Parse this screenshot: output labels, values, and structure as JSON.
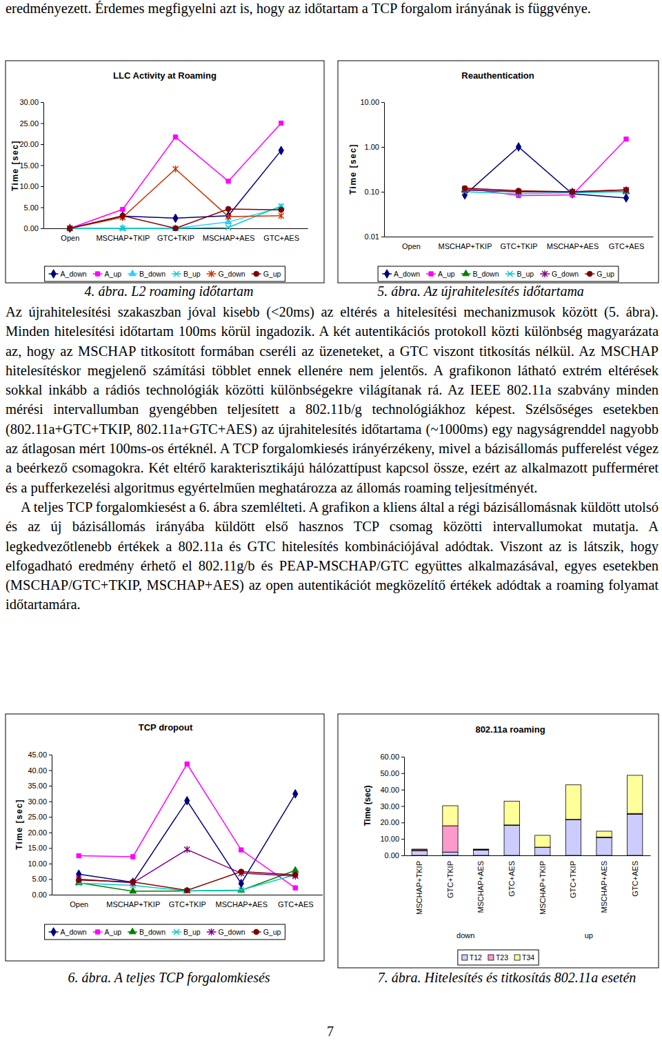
{
  "document": {
    "top_text": "eredményezett. Érdemes megfigyelni azt is, hogy az időtartam a TCP forgalom irányának is függvénye.",
    "paragraphs": [
      "Az újrahitelesítési szakaszban jóval kisebb (<20ms) az eltérés a hitelesítési mechanizmusok között (5. ábra). Minden hitelesítési időtartam 100ms körül ingadozik. A két autentikációs protokoll közti különbség magyarázata az, hogy az MSCHAP titkosított formában cseréli az üzeneteket, a GTC viszont titkosítás nélkül. Az MSCHAP hitelesítéskor megjelenő számítási többlet ennek ellenére nem jelentős. A grafikonon látható extrém eltérések sokkal inkább a rádiós technológiák közötti különbségekre világítanak rá. Az IEEE 802.11a szabvány minden mérési intervallumban gyengébben teljesített a 802.11b/g technológiákhoz képest. Szélsőséges esetekben (802.11a+GTC+TKIP, 802.11a+GTC+AES) az újrahitelesítés időtartama (~1000ms) egy nagyságrenddel nagyobb az átlagosan mért 100ms-os értéknél. A TCP forgalomkiesés irányérzékeny, mivel a bázisállomás pufferelést végez a beérkező csomagokra. Két eltérő karakterisztikájú hálózattípust kapcsol össze, ezért az alkalmazott pufferméret és a pufferkezelési algoritmus egyértelműen meghatározza az állomás roaming teljesítményét.",
      "A teljes TCP forgalomkiesést a 6. ábra szemlélteti. A grafikon a kliens által a régi bázisállomásnak küldött utolsó és az új bázisállomás irányába küldött első hasznos TCP csomag közötti intervallumokat mutatja. A legkedvezőtlenebb értékek a 802.11a és GTC hitelesítés kombinációjával adódtak. Viszont az is látszik, hogy elfogadható eredmény érhető el 802.11g/b és PEAP-MSCHAP/GTC együttes alkalmazásával, egyes esetekben (MSCHAP/GTC+TKIP, MSCHAP+AES) az open autentikációt megközelítő értékek adódtak a roaming folyamat időtartamára."
    ],
    "captions": [
      "4. ábra. L2 roaming időtartam",
      "5. ábra. Az újrahitelesítés időtartama",
      "6. ábra. A teljes TCP forgalomkiesés",
      "7. ábra. Hitelesítés és titkosítás 802.11a esetén"
    ],
    "page_number": "7"
  },
  "chart_data": [
    {
      "type": "line",
      "title": "LLC Activity at Roaming",
      "y_label": "Time [sec]",
      "categories": [
        "Open",
        "MSCHAP+TKIP",
        "GTC+TKIP",
        "MSCHAP+AES",
        "GTC+AES"
      ],
      "ylim": [
        0,
        30
      ],
      "yticks": [
        {
          "value": 0,
          "label": "0.00"
        },
        {
          "value": 5,
          "label": "5.00"
        },
        {
          "value": 10,
          "label": "10.00"
        },
        {
          "value": 15,
          "label": "15.00"
        },
        {
          "value": 20,
          "label": "20.00"
        },
        {
          "value": 25,
          "label": "25.00"
        },
        {
          "value": 30,
          "label": "30.00"
        }
      ],
      "legend": "bottom",
      "series": [
        {
          "name": "A_down",
          "color": "#000080",
          "marker": "diamond",
          "values": [
            0,
            2.9,
            2.4,
            3.0,
            18.5
          ]
        },
        {
          "name": "A_up",
          "color": "#FF00FF",
          "marker": "square",
          "values": [
            0,
            4.5,
            21.7,
            11.2,
            25.0
          ]
        },
        {
          "name": "B_down",
          "color": "#33CCFF",
          "marker": "triangle",
          "values": [
            0,
            0,
            0,
            1.5,
            5.0
          ]
        },
        {
          "name": "B_up",
          "color": "#00CCCC",
          "marker": "x",
          "values": [
            0,
            0,
            0,
            0.2,
            5.3
          ]
        },
        {
          "name": "G_down",
          "color": "#CC3300",
          "marker": "star",
          "values": [
            0,
            2.6,
            14.1,
            2.8,
            3.0
          ]
        },
        {
          "name": "G_up",
          "color": "#800000",
          "marker": "circle",
          "values": [
            0,
            3.0,
            0,
            4.6,
            4.4
          ]
        }
      ]
    },
    {
      "type": "line",
      "title": "Reauthentication",
      "y_label": "Time [sec]",
      "log": "y",
      "categories": [
        "Open",
        "MSCHAP+TKIP",
        "GTC+TKIP",
        "MSCHAP+AES",
        "GTC+AES"
      ],
      "ylim": [
        0.01,
        10
      ],
      "yticks": [
        0.01,
        {
          "value": 0.1,
          "label": "0.10"
        },
        {
          "value": 1,
          "label": "1.00"
        },
        {
          "value": 10,
          "label": "10.00"
        }
      ],
      "legend": "bottom",
      "series": [
        {
          "name": "A_down",
          "color": "#000080",
          "marker": "diamond",
          "values": [
            null,
            0.085,
            1.0,
            0.09,
            0.073
          ]
        },
        {
          "name": "A_up",
          "color": "#FF00FF",
          "marker": "square",
          "values": [
            null,
            0.12,
            0.082,
            0.085,
            1.5
          ]
        },
        {
          "name": "B_down",
          "color": "#008000",
          "marker": "triangle",
          "values": [
            null,
            0.11,
            0.1,
            0.1,
            0.1
          ]
        },
        {
          "name": "B_up",
          "color": "#00CCCC",
          "marker": "x",
          "values": [
            null,
            0.1,
            0.09,
            0.095,
            0.1
          ]
        },
        {
          "name": "G_down",
          "color": "#800080",
          "marker": "star",
          "values": [
            null,
            0.11,
            0.1,
            0.1,
            0.11
          ]
        },
        {
          "name": "G_up",
          "color": "#800000",
          "marker": "circle",
          "values": [
            null,
            0.12,
            0.105,
            0.1,
            0.11
          ]
        }
      ]
    },
    {
      "type": "line",
      "title": "TCP dropout",
      "y_label": "Time [sec]",
      "categories": [
        "Open",
        "MSCHAP+TKIP",
        "GTC+TKIP",
        "MSCHAP+AES",
        "GTC+AES"
      ],
      "ylim": [
        0,
        45
      ],
      "yticks": [
        {
          "value": 0,
          "label": "0.00"
        },
        {
          "value": 5,
          "label": "5.00"
        },
        {
          "value": 10,
          "label": "10.00"
        },
        {
          "value": 15,
          "label": "15.00"
        },
        {
          "value": 20,
          "label": "20.00"
        },
        {
          "value": 25,
          "label": "25.00"
        },
        {
          "value": 30,
          "label": "30.00"
        },
        {
          "value": 35,
          "label": "35.00"
        },
        {
          "value": 40,
          "label": "40.00"
        },
        {
          "value": 45,
          "label": "45.00"
        }
      ],
      "legend": "bottom",
      "series": [
        {
          "name": "A_down",
          "color": "#000080",
          "marker": "diamond",
          "values": [
            6.6,
            4.0,
            30.2,
            3.6,
            32.4
          ]
        },
        {
          "name": "A_up",
          "color": "#FF00FF",
          "marker": "square",
          "values": [
            12.5,
            12.2,
            42.0,
            14.4,
            2.2
          ]
        },
        {
          "name": "B_down",
          "color": "#008000",
          "marker": "triangle",
          "values": [
            3.8,
            1.1,
            1.2,
            1.4,
            7.8
          ]
        },
        {
          "name": "B_up",
          "color": "#00CCCC",
          "marker": "x",
          "values": [
            3.7,
            3.0,
            1.2,
            1.5,
            6.4
          ]
        },
        {
          "name": "G_down",
          "color": "#800080",
          "marker": "star",
          "values": [
            5.0,
            3.8,
            14.5,
            6.9,
            6.0
          ]
        },
        {
          "name": "G_up",
          "color": "#800000",
          "marker": "circle",
          "values": [
            4.7,
            4.1,
            1.4,
            7.4,
            6.4
          ]
        }
      ]
    },
    {
      "type": "bar",
      "stacked": true,
      "title": "802.11a roaming",
      "y_label": "Time (sec)",
      "categories": [
        "MSCHAP+TKIP",
        "GTC+TKIP",
        "MSCHAP+AES",
        "GTC+AES",
        "MSCHAP+TKIP",
        "GTC+TKIP",
        "MSCHAP+AES",
        "GTC+AES"
      ],
      "category_groups": [
        "down",
        "up"
      ],
      "ylim": [
        0,
        60
      ],
      "yticks": [
        {
          "value": 0,
          "label": "0.00"
        },
        {
          "value": 10,
          "label": "10.00"
        },
        {
          "value": 20,
          "label": "20.00"
        },
        {
          "value": 30,
          "label": "30.00"
        },
        {
          "value": 40,
          "label": "40.00"
        },
        {
          "value": 50,
          "label": "50.00"
        },
        {
          "value": 60,
          "label": "60.00"
        }
      ],
      "legend": "bottom",
      "series": [
        {
          "name": "T12",
          "color": "#CCCCFF",
          "values": [
            2.8,
            2.0,
            3.2,
            18.2,
            4.8,
            21.6,
            10.8,
            25.0
          ]
        },
        {
          "name": "T23",
          "color": "#FF99CC",
          "values": [
            0.6,
            16.0,
            0.3,
            0.3,
            0.2,
            0.3,
            0.3,
            0.5
          ]
        },
        {
          "name": "T34",
          "color": "#FFFF99",
          "values": [
            0.4,
            12.2,
            0.3,
            14.5,
            7.2,
            21.0,
            3.6,
            23.2
          ]
        }
      ]
    }
  ]
}
